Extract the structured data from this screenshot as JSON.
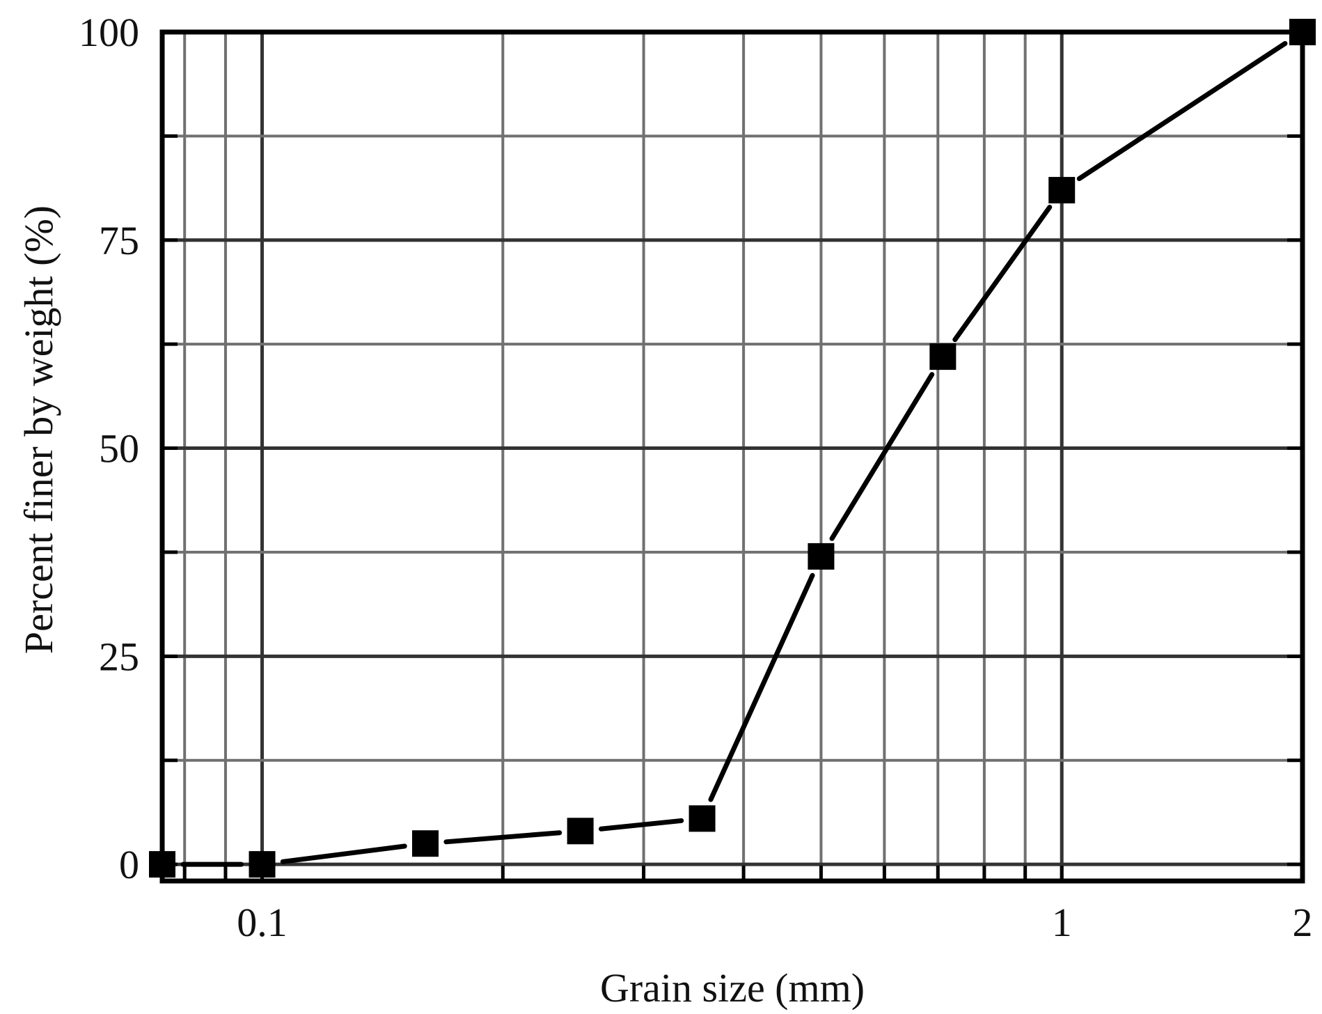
{
  "chart_data": {
    "type": "line",
    "xlabel": "Grain size (mm)",
    "ylabel": "Percent finer by weight (%)",
    "x_scale": "log",
    "xlim": [
      0.075,
      2
    ],
    "ylim": [
      -2,
      100
    ],
    "x_ticks": [
      {
        "value": 0.1,
        "label": "0.1"
      },
      {
        "value": 1,
        "label": "1"
      },
      {
        "value": 2,
        "label": "2"
      }
    ],
    "y_ticks": [
      {
        "value": 0,
        "label": "0"
      },
      {
        "value": 25,
        "label": "25"
      },
      {
        "value": 50,
        "label": "50"
      },
      {
        "value": 75,
        "label": "75"
      },
      {
        "value": 100,
        "label": "100"
      }
    ],
    "grid": true,
    "marker": "square",
    "line_color": "#000000",
    "grid_color": "#707070",
    "series": [
      {
        "x": [
          0.075,
          0.1,
          0.16,
          0.25,
          0.355,
          0.5,
          0.71,
          1.0,
          2.0
        ],
        "y": [
          0,
          0,
          2.5,
          4,
          5.5,
          37,
          61,
          81,
          100
        ]
      }
    ]
  }
}
